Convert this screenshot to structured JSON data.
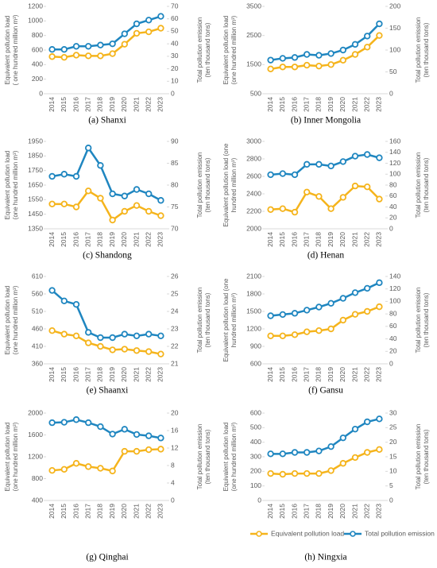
{
  "chart_data": [
    {
      "type": "line",
      "caption": "(a) Shanxi",
      "categories": [
        "2014",
        "2015",
        "2016",
        "2017",
        "2018",
        "2019",
        "2020",
        "2021",
        "2022",
        "2023"
      ],
      "ylabel": [
        "Equivalent pollution load",
        "( one hundred million m³)"
      ],
      "y2label": [
        "Total pollution emission",
        "(ten thousand tons)"
      ],
      "ylim": [
        0,
        1200
      ],
      "yticks": [
        0,
        200,
        400,
        600,
        800,
        1000,
        1200
      ],
      "y2lim": [
        0,
        70
      ],
      "y2ticks": [
        0,
        10,
        20,
        30,
        40,
        50,
        60,
        70
      ],
      "series": [
        {
          "color": "#f5b41c",
          "values": [
            510,
            500,
            530,
            520,
            520,
            550,
            680,
            830,
            850,
            900
          ]
        },
        {
          "color": "#1f86c0",
          "axis": "y2",
          "values": [
            35.5,
            35.5,
            38,
            38,
            39,
            40,
            48,
            56,
            59,
            62
          ]
        }
      ]
    },
    {
      "type": "line",
      "caption": "(b) Inner Mongolia",
      "categories": [
        "2014",
        "2015",
        "2016",
        "2017",
        "2018",
        "2019",
        "2020",
        "2021",
        "2022",
        "2023"
      ],
      "ylabel": [
        "Equivalent pollution load",
        "(one hundred million m³)"
      ],
      "y2label": [
        "Total pollution emission",
        "(ten thousand tons)"
      ],
      "ylim": [
        500,
        3500
      ],
      "yticks": [
        500,
        1500,
        2500,
        3500
      ],
      "y2lim": [
        0,
        200
      ],
      "y2ticks": [
        0,
        50,
        100,
        150,
        200
      ],
      "series": [
        {
          "color": "#f5b41c",
          "values": [
            1350,
            1420,
            1420,
            1480,
            1450,
            1500,
            1650,
            1850,
            2100,
            2500
          ]
        },
        {
          "color": "#1f86c0",
          "axis": "y2",
          "values": [
            77,
            81,
            83,
            90,
            88,
            92,
            100,
            113,
            132,
            160
          ]
        }
      ]
    },
    {
      "type": "line",
      "caption": "(c) Shandong",
      "categories": [
        "2014",
        "2015",
        "2016",
        "2017",
        "2018",
        "2019",
        "2020",
        "2021",
        "2022",
        "2023"
      ],
      "ylabel": [
        "Equivalent pollution load",
        "(one hundred million m³)"
      ],
      "y2label": [
        "Total pollution emission",
        "(ten thousand tons)"
      ],
      "ylim": [
        1350,
        1950
      ],
      "yticks": [
        1350,
        1450,
        1550,
        1650,
        1750,
        1850,
        1950
      ],
      "y2lim": [
        70,
        90
      ],
      "y2ticks": [
        70,
        75,
        80,
        85,
        90
      ],
      "series": [
        {
          "color": "#f5b41c",
          "values": [
            1520,
            1520,
            1500,
            1610,
            1560,
            1410,
            1470,
            1510,
            1470,
            1440
          ]
        },
        {
          "color": "#1f86c0",
          "axis": "y2",
          "values": [
            82,
            82.5,
            82,
            88.5,
            84.5,
            78,
            77.5,
            79,
            78,
            76.5
          ]
        }
      ]
    },
    {
      "type": "line",
      "caption": "(d) Henan",
      "categories": [
        "2014",
        "2015",
        "2016",
        "2017",
        "2018",
        "2019",
        "2020",
        "2021",
        "2022",
        "2023"
      ],
      "ylabel": [
        "Equivalent pollution load (one",
        "hundred million m³)"
      ],
      "y2label": [
        "Total pollution emission",
        "(ten thousand tons)"
      ],
      "ylim": [
        2000,
        3000
      ],
      "yticks": [
        2000,
        2200,
        2400,
        2600,
        2800,
        3000
      ],
      "y2lim": [
        0,
        160
      ],
      "y2ticks": [
        0,
        20,
        40,
        60,
        80,
        100,
        120,
        140,
        160
      ],
      "series": [
        {
          "color": "#f5b41c",
          "values": [
            2220,
            2230,
            2190,
            2420,
            2370,
            2230,
            2360,
            2490,
            2480,
            2340
          ]
        },
        {
          "color": "#1f86c0",
          "axis": "y2",
          "values": [
            99,
            101,
            99,
            118,
            118,
            115,
            123,
            133,
            136,
            130
          ]
        }
      ]
    },
    {
      "type": "line",
      "caption": "(e) Shaanxi",
      "categories": [
        "2014",
        "2015",
        "2016",
        "2017",
        "2018",
        "2019",
        "2020",
        "2021",
        "2022",
        "2023"
      ],
      "ylabel": [
        "Equivalent pollution load",
        "(one hundred million m³)"
      ],
      "y2label": [
        "Total pollution emission",
        "(ten thousand tons)"
      ],
      "ylim": [
        360,
        610
      ],
      "yticks": [
        360,
        410,
        460,
        510,
        560,
        610
      ],
      "y2lim": [
        21,
        26
      ],
      "y2ticks": [
        21,
        22,
        23,
        24,
        25,
        26
      ],
      "series": [
        {
          "color": "#f5b41c",
          "values": [
            455,
            445,
            440,
            420,
            410,
            400,
            402,
            398,
            395,
            388
          ]
        },
        {
          "color": "#1f86c0",
          "axis": "y2",
          "values": [
            25.2,
            24.6,
            24.4,
            22.8,
            22.5,
            22.5,
            22.7,
            22.6,
            22.7,
            22.6
          ]
        }
      ]
    },
    {
      "type": "line",
      "caption": "(f) Gansu",
      "categories": [
        "2014",
        "2015",
        "2016",
        "2017",
        "2018",
        "2019",
        "2020",
        "2021",
        "2022",
        "2023"
      ],
      "ylabel": [
        "Equivalent pollution load (one",
        "hundred million m³)"
      ],
      "y2label": [
        "Total pollution emission",
        "(ten thousand tons)"
      ],
      "ylim": [
        600,
        2100
      ],
      "yticks": [
        600,
        900,
        1200,
        1500,
        1800,
        2100
      ],
      "y2lim": [
        0,
        140
      ],
      "y2ticks": [
        0,
        20,
        40,
        60,
        80,
        100,
        120,
        140
      ],
      "series": [
        {
          "color": "#f5b41c",
          "values": [
            1080,
            1080,
            1100,
            1150,
            1170,
            1200,
            1350,
            1450,
            1500,
            1580
          ]
        },
        {
          "color": "#1f86c0",
          "axis": "y2",
          "values": [
            77,
            79,
            81,
            86,
            91,
            97,
            105,
            114,
            121,
            130
          ]
        }
      ]
    },
    {
      "type": "line",
      "caption": "(g) Qinghai",
      "categories": [
        "2014",
        "2015",
        "2016",
        "2017",
        "2018",
        "2019",
        "2020",
        "2021",
        "2022",
        "2023"
      ],
      "ylabel": [
        "Equivalent pollution load",
        "(one hundred million m³)"
      ],
      "y2label": [
        "Total pollution emission",
        "(ten thousand tons)"
      ],
      "ylim": [
        400,
        2000
      ],
      "yticks": [
        400,
        800,
        1200,
        1600,
        2000
      ],
      "y2lim": [
        0,
        20
      ],
      "y2ticks": [
        0,
        4,
        8,
        12,
        16,
        20
      ],
      "series": [
        {
          "color": "#f5b41c",
          "values": [
            950,
            970,
            1080,
            1020,
            990,
            940,
            1300,
            1300,
            1330,
            1340
          ]
        },
        {
          "color": "#1f86c0",
          "axis": "y2",
          "values": [
            17.8,
            17.9,
            18.5,
            17.8,
            16.9,
            15.2,
            16.3,
            15.1,
            14.8,
            14.3
          ]
        }
      ]
    },
    {
      "type": "line",
      "caption": "(h) Ningxia",
      "categories": [
        "2014",
        "2015",
        "2016",
        "2017",
        "2018",
        "2019",
        "2020",
        "2021",
        "2022",
        "2023"
      ],
      "ylabel": [
        "Equivalent pollution load",
        "(one hundred million m³)"
      ],
      "y2label": [
        "Total pollution emission",
        "(ten thousand tons)"
      ],
      "ylim": [
        0,
        600
      ],
      "yticks": [
        0,
        100,
        200,
        300,
        400,
        500,
        600
      ],
      "y2lim": [
        0,
        30
      ],
      "y2ticks": [
        0,
        5,
        10,
        15,
        20,
        25,
        30
      ],
      "series": [
        {
          "name": "Equivalent pollution load",
          "color": "#f5b41c",
          "values": [
            185,
            180,
            185,
            185,
            185,
            205,
            255,
            295,
            330,
            350
          ]
        },
        {
          "name": "Total pollution emission",
          "color": "#1f86c0",
          "axis": "y2",
          "values": [
            16,
            16,
            16.5,
            16.5,
            17,
            18.5,
            21.5,
            24.5,
            27,
            28
          ]
        }
      ]
    }
  ]
}
